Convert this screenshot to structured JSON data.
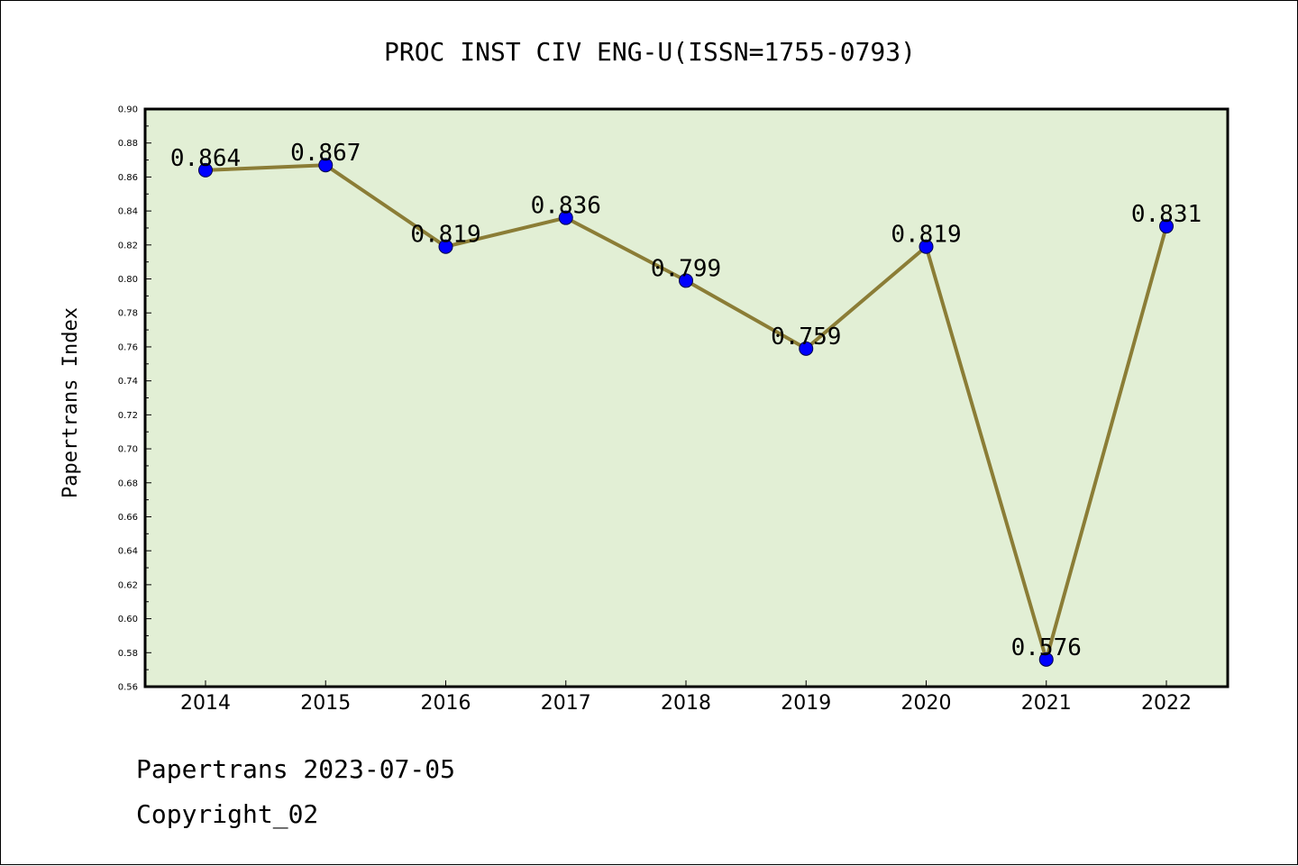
{
  "chart_data": {
    "type": "line",
    "title": "PROC INST CIV ENG-U(ISSN=1755-0793)",
    "xlabel": "",
    "ylabel": "Papertrans Index",
    "categories": [
      "2014",
      "2015",
      "2016",
      "2017",
      "2018",
      "2019",
      "2020",
      "2021",
      "2022"
    ],
    "series": [
      {
        "name": "Papertrans Index",
        "values": [
          0.864,
          0.867,
          0.819,
          0.836,
          0.799,
          0.759,
          0.819,
          0.576,
          0.831
        ],
        "labels": [
          "0.864",
          "0.867",
          "0.819",
          "0.836",
          "0.799",
          "0.759",
          "0.819",
          "0.576",
          "0.831"
        ]
      }
    ],
    "ylim": [
      0.56,
      0.9
    ],
    "yticks": [
      "0.56",
      "0.58",
      "0.60",
      "0.62",
      "0.64",
      "0.66",
      "0.68",
      "0.70",
      "0.72",
      "0.74",
      "0.76",
      "0.78",
      "0.80",
      "0.82",
      "0.84",
      "0.86",
      "0.88",
      "0.90"
    ],
    "grid": false,
    "colors": {
      "plot_background": "#e2efd5",
      "line": "#8b7d36",
      "marker": "#0000ff"
    }
  },
  "footer": {
    "date_line": "Papertrans 2023-07-05",
    "copyright_line": "Copyright_02"
  }
}
